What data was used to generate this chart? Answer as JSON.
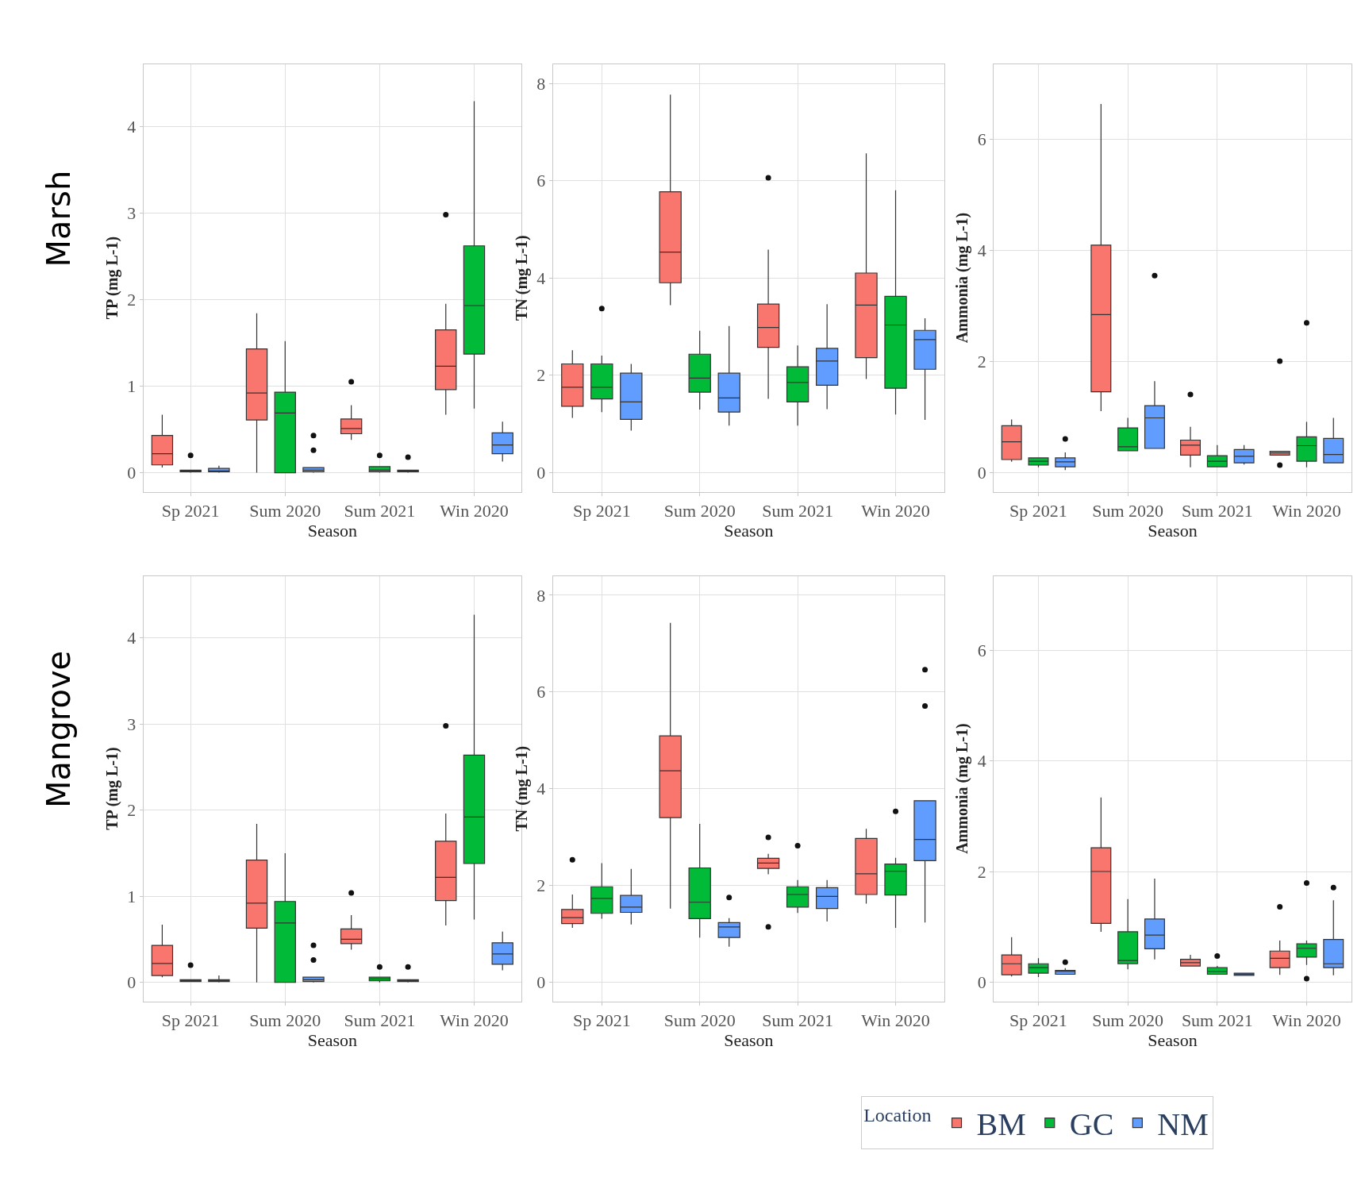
{
  "chart_data": [
    {
      "type": "box",
      "xlabel": "Season",
      "ylabel": "TP (mg L-1)",
      "annotations": [
        "Marsh"
      ],
      "legend": "bottom",
      "legend_title": "Location",
      "categories": [
        "Sp 2021",
        "Sum 2020",
        "Sum 2021",
        "Win 2020"
      ],
      "ylim": [
        -0.22,
        4.72
      ],
      "yticks": [
        0,
        1,
        2,
        3,
        4
      ],
      "grid": true,
      "series": [
        {
          "name": "BM",
          "color": "#f8766d",
          "boxes": [
            {
              "low": 0.06,
              "q1": 0.09,
              "median": 0.22,
              "q3": 0.43,
              "high": 0.67
            },
            {
              "low": 0,
              "q1": 0.61,
              "median": 0.92,
              "q3": 1.43,
              "high": 1.84
            },
            {
              "low": 0.38,
              "q1": 0.45,
              "median": 0.51,
              "q3": 0.62,
              "high": 0.78,
              "outliers": [
                1.05
              ]
            },
            {
              "low": 0.67,
              "q1": 0.96,
              "median": 1.23,
              "q3": 1.65,
              "high": 1.95,
              "outliers": [
                2.98
              ]
            }
          ]
        },
        {
          "name": "GC",
          "color": "#00ba38",
          "boxes": [
            {
              "low": 0,
              "q1": 0.01,
              "median": 0.02,
              "q3": 0.03,
              "high": 0.03,
              "outliers": [
                0.2
              ]
            },
            {
              "low": 0,
              "q1": 0,
              "median": 0.69,
              "q3": 0.93,
              "high": 1.52
            },
            {
              "low": 0,
              "q1": 0.01,
              "median": 0.03,
              "q3": 0.07,
              "high": 0.07,
              "outliers": [
                0.2
              ]
            },
            {
              "low": 0.74,
              "q1": 1.37,
              "median": 1.93,
              "q3": 2.62,
              "high": 4.29
            }
          ]
        },
        {
          "name": "NM",
          "color": "#619cff",
          "boxes": [
            {
              "low": 0,
              "q1": 0.01,
              "median": 0.02,
              "q3": 0.05,
              "high": 0.08
            },
            {
              "low": 0,
              "q1": 0.01,
              "median": 0.03,
              "q3": 0.06,
              "high": 0.06,
              "outliers": [
                0.26,
                0.43
              ]
            },
            {
              "low": 0,
              "q1": 0.01,
              "median": 0.02,
              "q3": 0.03,
              "high": 0.03,
              "outliers": [
                0.18
              ]
            },
            {
              "low": 0.13,
              "q1": 0.22,
              "median": 0.32,
              "q3": 0.46,
              "high": 0.59
            }
          ]
        }
      ]
    },
    {
      "type": "box",
      "xlabel": "Season",
      "ylabel": "TN (mg L-1)",
      "categories": [
        "Sp 2021",
        "Sum 2020",
        "Sum 2021",
        "Win 2020"
      ],
      "ylim": [
        -0.4,
        8.4
      ],
      "yticks": [
        0,
        2,
        4,
        6,
        8
      ],
      "grid": true,
      "series": [
        {
          "color": "#f8766d",
          "boxes": [
            {
              "low": 1.12,
              "q1": 1.36,
              "median": 1.75,
              "q3": 2.23,
              "high": 2.51
            },
            {
              "low": 3.44,
              "q1": 3.9,
              "median": 4.53,
              "q3": 5.77,
              "high": 7.77
            },
            {
              "low": 1.51,
              "q1": 2.57,
              "median": 2.98,
              "q3": 3.46,
              "high": 4.58,
              "outliers": [
                6.06
              ]
            },
            {
              "low": 1.92,
              "q1": 2.36,
              "median": 3.44,
              "q3": 4.1,
              "high": 6.56
            }
          ]
        },
        {
          "color": "#00ba38",
          "boxes": [
            {
              "low": 1.24,
              "q1": 1.51,
              "median": 1.75,
              "q3": 2.23,
              "high": 2.4,
              "outliers": [
                3.37
              ]
            },
            {
              "low": 1.29,
              "q1": 1.65,
              "median": 1.94,
              "q3": 2.43,
              "high": 2.91
            },
            {
              "low": 0.96,
              "q1": 1.45,
              "median": 1.85,
              "q3": 2.17,
              "high": 2.61
            },
            {
              "low": 1.19,
              "q1": 1.73,
              "median": 3.03,
              "q3": 3.62,
              "high": 5.8
            }
          ]
        },
        {
          "color": "#619cff",
          "boxes": [
            {
              "low": 0.86,
              "q1": 1.09,
              "median": 1.45,
              "q3": 2.04,
              "high": 2.23
            },
            {
              "low": 0.96,
              "q1": 1.24,
              "median": 1.53,
              "q3": 2.04,
              "high": 3.01
            },
            {
              "low": 1.3,
              "q1": 1.79,
              "median": 2.29,
              "q3": 2.55,
              "high": 3.46
            },
            {
              "low": 1.08,
              "q1": 2.12,
              "median": 2.73,
              "q3": 2.92,
              "high": 3.17
            }
          ]
        }
      ]
    },
    {
      "type": "box",
      "xlabel": "Season",
      "ylabel": "Ammonia (mg L-1)",
      "categories": [
        "Sp 2021",
        "Sum 2020",
        "Sum 2021",
        "Win 2020"
      ],
      "ylim": [
        -0.35,
        7.35
      ],
      "yticks": [
        0,
        2,
        4,
        6
      ],
      "grid": true,
      "series": [
        {
          "color": "#f8766d",
          "boxes": [
            {
              "low": 0.19,
              "q1": 0.23,
              "median": 0.55,
              "q3": 0.84,
              "high": 0.95
            },
            {
              "low": 1.1,
              "q1": 1.45,
              "median": 2.84,
              "q3": 4.09,
              "high": 6.63
            },
            {
              "low": 0.09,
              "q1": 0.31,
              "median": 0.49,
              "q3": 0.58,
              "high": 0.82,
              "outliers": [
                1.4
              ]
            },
            {
              "low": 0.31,
              "q1": 0.31,
              "median": 0.35,
              "q3": 0.38,
              "high": 0.38,
              "outliers": [
                2.0,
                0.13
              ]
            }
          ]
        },
        {
          "color": "#00ba38",
          "boxes": [
            {
              "low": 0.09,
              "q1": 0.13,
              "median": 0.2,
              "q3": 0.26,
              "high": 0.26
            },
            {
              "low": 0.39,
              "q1": 0.39,
              "median": 0.46,
              "q3": 0.8,
              "high": 0.98
            },
            {
              "low": 0.1,
              "q1": 0.1,
              "median": 0.2,
              "q3": 0.3,
              "high": 0.49
            },
            {
              "low": 0.09,
              "q1": 0.2,
              "median": 0.48,
              "q3": 0.64,
              "high": 0.91,
              "outliers": [
                2.69
              ]
            }
          ]
        },
        {
          "color": "#619cff",
          "boxes": [
            {
              "low": 0.04,
              "q1": 0.1,
              "median": 0.19,
              "q3": 0.26,
              "high": 0.36,
              "outliers": [
                0.6
              ]
            },
            {
              "low": 0.43,
              "q1": 0.43,
              "median": 0.98,
              "q3": 1.2,
              "high": 1.64,
              "outliers": [
                3.54
              ]
            },
            {
              "low": 0.14,
              "q1": 0.17,
              "median": 0.29,
              "q3": 0.41,
              "high": 0.49
            },
            {
              "low": 0.17,
              "q1": 0.17,
              "median": 0.32,
              "q3": 0.61,
              "high": 0.98
            }
          ]
        }
      ]
    },
    {
      "type": "box",
      "xlabel": "Season",
      "ylabel": "TP (mg L-1)",
      "annotations": [
        "Mangrove"
      ],
      "categories": [
        "Sp 2021",
        "Sum 2020",
        "Sum 2021",
        "Win 2020"
      ],
      "ylim": [
        -0.22,
        4.72
      ],
      "yticks": [
        0,
        1,
        2,
        3,
        4
      ],
      "grid": true,
      "series": [
        {
          "color": "#f8766d",
          "boxes": [
            {
              "low": 0.06,
              "q1": 0.08,
              "median": 0.22,
              "q3": 0.43,
              "high": 0.67
            },
            {
              "low": 0,
              "q1": 0.63,
              "median": 0.92,
              "q3": 1.42,
              "high": 1.84
            },
            {
              "low": 0.38,
              "q1": 0.45,
              "median": 0.5,
              "q3": 0.62,
              "high": 0.78,
              "outliers": [
                1.04
              ]
            },
            {
              "low": 0.66,
              "q1": 0.95,
              "median": 1.22,
              "q3": 1.64,
              "high": 1.96,
              "outliers": [
                2.98
              ]
            }
          ]
        },
        {
          "color": "#00ba38",
          "boxes": [
            {
              "low": 0.01,
              "q1": 0.01,
              "median": 0.02,
              "q3": 0.03,
              "high": 0.03,
              "outliers": [
                0.2
              ]
            },
            {
              "low": 0,
              "q1": 0,
              "median": 0.69,
              "q3": 0.94,
              "high": 1.5
            },
            {
              "low": 0,
              "q1": 0.02,
              "median": 0.04,
              "q3": 0.06,
              "high": 0.06,
              "outliers": [
                0.18
              ]
            },
            {
              "low": 0.73,
              "q1": 1.38,
              "median": 1.92,
              "q3": 2.64,
              "high": 4.27
            }
          ]
        },
        {
          "color": "#619cff",
          "boxes": [
            {
              "low": 0,
              "q1": 0.01,
              "median": 0.02,
              "q3": 0.03,
              "high": 0.08
            },
            {
              "low": 0,
              "q1": 0.01,
              "median": 0.03,
              "q3": 0.06,
              "high": 0.06,
              "outliers": [
                0.26,
                0.43
              ]
            },
            {
              "low": 0,
              "q1": 0.01,
              "median": 0.02,
              "q3": 0.03,
              "high": 0.03,
              "outliers": [
                0.18
              ]
            },
            {
              "low": 0.14,
              "q1": 0.21,
              "median": 0.33,
              "q3": 0.46,
              "high": 0.59
            }
          ]
        }
      ]
    },
    {
      "type": "box",
      "xlabel": "Season",
      "ylabel": "TN (mg L-1)",
      "categories": [
        "Sp 2021",
        "Sum 2020",
        "Sum 2021",
        "Win 2020"
      ],
      "ylim": [
        -0.4,
        8.4
      ],
      "yticks": [
        0,
        2,
        4,
        6,
        8
      ],
      "grid": true,
      "series": [
        {
          "color": "#f8766d",
          "boxes": [
            {
              "low": 1.12,
              "q1": 1.21,
              "median": 1.33,
              "q3": 1.5,
              "high": 1.81,
              "outliers": [
                2.53
              ]
            },
            {
              "low": 1.52,
              "q1": 3.4,
              "median": 4.37,
              "q3": 5.09,
              "high": 7.43
            },
            {
              "low": 2.23,
              "q1": 2.35,
              "median": 2.46,
              "q3": 2.56,
              "high": 2.65,
              "outliers": [
                2.99,
                1.14
              ]
            },
            {
              "low": 1.62,
              "q1": 1.81,
              "median": 2.24,
              "q3": 2.97,
              "high": 3.17
            }
          ]
        },
        {
          "color": "#00ba38",
          "boxes": [
            {
              "low": 1.31,
              "q1": 1.42,
              "median": 1.73,
              "q3": 1.97,
              "high": 2.46
            },
            {
              "low": 0.92,
              "q1": 1.31,
              "median": 1.65,
              "q3": 2.36,
              "high": 3.27
            },
            {
              "low": 1.43,
              "q1": 1.55,
              "median": 1.81,
              "q3": 1.97,
              "high": 2.11,
              "outliers": [
                2.82
              ]
            },
            {
              "low": 1.12,
              "q1": 1.8,
              "median": 2.29,
              "q3": 2.44,
              "high": 2.57,
              "outliers": [
                3.53
              ]
            }
          ]
        },
        {
          "color": "#619cff",
          "boxes": [
            {
              "low": 1.19,
              "q1": 1.44,
              "median": 1.55,
              "q3": 1.79,
              "high": 2.34
            },
            {
              "low": 0.73,
              "q1": 0.92,
              "median": 1.14,
              "q3": 1.23,
              "high": 1.32,
              "outliers": [
                1.75
              ]
            },
            {
              "low": 1.25,
              "q1": 1.52,
              "median": 1.77,
              "q3": 1.95,
              "high": 2.11
            },
            {
              "low": 1.23,
              "q1": 2.51,
              "median": 2.95,
              "q3": 3.75,
              "high": 3.75,
              "outliers": [
                6.46,
                5.71
              ]
            }
          ]
        }
      ]
    },
    {
      "type": "box",
      "xlabel": "Season",
      "ylabel": "Ammonia (mg L-1)",
      "categories": [
        "Sp 2021",
        "Sum 2020",
        "Sum 2021",
        "Win 2020"
      ],
      "ylim": [
        -0.35,
        7.35
      ],
      "yticks": [
        0,
        2,
        4,
        6
      ],
      "grid": true,
      "series": [
        {
          "color": "#f8766d",
          "boxes": [
            {
              "low": 0.1,
              "q1": 0.13,
              "median": 0.33,
              "q3": 0.49,
              "high": 0.81
            },
            {
              "low": 0.91,
              "q1": 1.06,
              "median": 2.0,
              "q3": 2.43,
              "high": 3.34
            },
            {
              "low": 0.29,
              "q1": 0.29,
              "median": 0.35,
              "q3": 0.41,
              "high": 0.49
            },
            {
              "low": 0.13,
              "q1": 0.26,
              "median": 0.43,
              "q3": 0.56,
              "high": 0.75,
              "outliers": [
                1.36
              ]
            }
          ]
        },
        {
          "color": "#00ba38",
          "boxes": [
            {
              "low": 0.09,
              "q1": 0.16,
              "median": 0.26,
              "q3": 0.33,
              "high": 0.43
            },
            {
              "low": 0.23,
              "q1": 0.33,
              "median": 0.39,
              "q3": 0.91,
              "high": 1.5
            },
            {
              "low": 0.14,
              "q1": 0.14,
              "median": 0.19,
              "q3": 0.26,
              "high": 0.29,
              "outliers": [
                0.47
              ]
            },
            {
              "low": 0.31,
              "q1": 0.45,
              "median": 0.61,
              "q3": 0.69,
              "high": 0.75,
              "outliers": [
                1.79,
                0.06
              ]
            }
          ]
        },
        {
          "color": "#619cff",
          "boxes": [
            {
              "low": 0.14,
              "q1": 0.14,
              "median": 0.19,
              "q3": 0.21,
              "high": 0.25,
              "outliers": [
                0.36
              ]
            },
            {
              "low": 0.41,
              "q1": 0.6,
              "median": 0.85,
              "q3": 1.14,
              "high": 1.87
            },
            {
              "low": 0.12,
              "q1": 0.12,
              "median": 0.14,
              "q3": 0.16,
              "high": 0.16
            },
            {
              "low": 0.12,
              "q1": 0.26,
              "median": 0.33,
              "q3": 0.77,
              "high": 1.48,
              "outliers": [
                1.71
              ]
            }
          ]
        }
      ]
    }
  ]
}
